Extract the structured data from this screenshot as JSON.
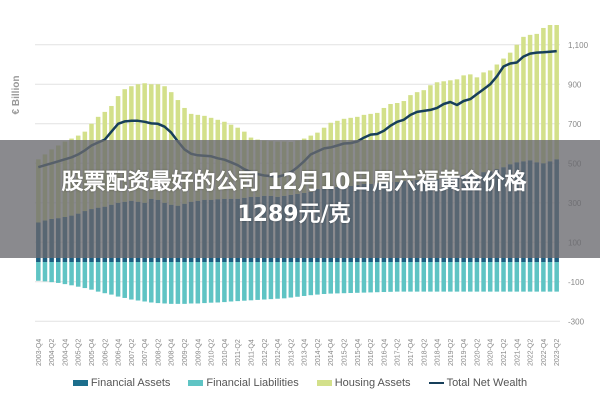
{
  "banner": {
    "title": "股票配资最好的公司 12月10日周六福黄金价格1289元/克"
  },
  "colors": {
    "financial_assets": "#1c5e80",
    "financial_liabilities": "#5fc4c4",
    "housing_assets": "#d3e08a",
    "total_net_wealth": "#173f5a",
    "grid": "#e2e2e2",
    "tick_text": "#888888"
  },
  "chart_data": {
    "type": "bar",
    "stacked": true,
    "ylabel": "€ Billion",
    "ylim": [
      -300,
      1200
    ],
    "yticks": [
      1100,
      900,
      700,
      500,
      300,
      100,
      -100,
      -300
    ],
    "ytick_labels": [
      "1,100",
      "900",
      "700",
      "500",
      "300",
      "100",
      "-100",
      "-300"
    ],
    "y_axis_side": "right",
    "grid": true,
    "legend_position": "bottom",
    "categories": [
      "2003-Q4",
      "2004-Q1",
      "2004-Q2",
      "2004-Q3",
      "2004-Q4",
      "2005-Q1",
      "2005-Q2",
      "2005-Q3",
      "2005-Q4",
      "2006-Q1",
      "2006-Q2",
      "2006-Q3",
      "2006-Q4",
      "2007-Q1",
      "2007-Q2",
      "2007-Q3",
      "2007-Q4",
      "2008-Q1",
      "2008-Q2",
      "2008-Q3",
      "2008-Q4",
      "2009-Q1",
      "2009-Q2",
      "2009-Q3",
      "2009-Q4",
      "2010-Q1",
      "2010-Q2",
      "2010-Q3",
      "2010-Q4",
      "2011-Q1",
      "2011-Q2",
      "2011-Q3",
      "2011-Q4",
      "2012-Q1",
      "2012-Q2",
      "2012-Q3",
      "2012-Q4",
      "2013-Q1",
      "2013-Q2",
      "2013-Q3",
      "2013-Q4",
      "2014-Q1",
      "2014-Q2",
      "2014-Q3",
      "2014-Q4",
      "2015-Q1",
      "2015-Q2",
      "2015-Q3",
      "2015-Q4",
      "2016-Q1",
      "2016-Q2",
      "2016-Q3",
      "2016-Q4",
      "2017-Q1",
      "2017-Q2",
      "2017-Q3",
      "2017-Q4",
      "2018-Q1",
      "2018-Q2",
      "2018-Q3",
      "2018-Q4",
      "2019-Q1",
      "2019-Q2",
      "2019-Q3",
      "2019-Q4",
      "2020-Q1",
      "2020-Q2",
      "2020-Q3",
      "2020-Q4",
      "2021-Q1",
      "2021-Q2",
      "2021-Q3",
      "2021-Q4",
      "2022-Q1",
      "2022-Q2",
      "2022-Q3",
      "2022-Q4",
      "2023-Q1",
      "2023-Q2"
    ],
    "series": [
      {
        "name": "Financial Assets",
        "kind": "bar",
        "values": [
          200,
          210,
          218,
          222,
          228,
          235,
          245,
          258,
          268,
          275,
          280,
          290,
          300,
          305,
          310,
          305,
          300,
          320,
          315,
          300,
          290,
          285,
          295,
          305,
          310,
          315,
          315,
          318,
          320,
          320,
          320,
          325,
          330,
          330,
          335,
          335,
          330,
          335,
          340,
          345,
          350,
          355,
          370,
          375,
          375,
          380,
          385,
          385,
          390,
          395,
          395,
          400,
          400,
          405,
          405,
          410,
          410,
          415,
          415,
          420,
          420,
          425,
          430,
          430,
          440,
          445,
          440,
          455,
          460,
          470,
          480,
          495,
          505,
          510,
          515,
          505,
          500,
          510,
          520
        ]
      },
      {
        "name": "Financial Liabilities",
        "kind": "bar",
        "values": [
          -95,
          -98,
          -102,
          -106,
          -112,
          -118,
          -125,
          -132,
          -140,
          -150,
          -158,
          -165,
          -175,
          -182,
          -190,
          -195,
          -200,
          -205,
          -208,
          -210,
          -212,
          -212,
          -212,
          -210,
          -210,
          -208,
          -206,
          -205,
          -203,
          -200,
          -198,
          -196,
          -194,
          -192,
          -190,
          -188,
          -186,
          -184,
          -180,
          -176,
          -172,
          -168,
          -165,
          -162,
          -160,
          -159,
          -158,
          -157,
          -156,
          -155,
          -154,
          -153,
          -152,
          -151,
          -150,
          -150,
          -150,
          -150,
          -150,
          -150,
          -150,
          -150,
          -150,
          -150,
          -150,
          -150,
          -150,
          -150,
          -150,
          -150,
          -150,
          -150,
          -150,
          -150,
          -150,
          -150,
          -150,
          -150,
          -150
        ]
      },
      {
        "name": "Housing Assets",
        "kind": "bar",
        "values": [
          320,
          335,
          352,
          368,
          382,
          390,
          395,
          402,
          432,
          460,
          480,
          500,
          540,
          570,
          580,
          595,
          605,
          580,
          585,
          590,
          570,
          535,
          485,
          445,
          435,
          425,
          415,
          402,
          390,
          375,
          360,
          335,
          300,
          290,
          280,
          277,
          280,
          275,
          268,
          270,
          275,
          285,
          285,
          305,
          330,
          335,
          340,
          345,
          345,
          350,
          355,
          355,
          380,
          395,
          400,
          405,
          435,
          445,
          455,
          475,
          490,
          490,
          490,
          495,
          505,
          505,
          495,
          505,
          510,
          530,
          550,
          565,
          595,
          630,
          635,
          650,
          685,
          690,
          680
        ]
      },
      {
        "name": "Total Net Wealth",
        "kind": "line",
        "values": [
          480,
          490,
          500,
          510,
          520,
          530,
          545,
          565,
          590,
          605,
          620,
          660,
          700,
          712,
          715,
          715,
          710,
          702,
          700,
          685,
          655,
          610,
          570,
          548,
          540,
          538,
          535,
          525,
          518,
          505,
          490,
          470,
          455,
          445,
          438,
          435,
          432,
          440,
          455,
          480,
          510,
          545,
          560,
          575,
          580,
          590,
          600,
          602,
          610,
          630,
          645,
          648,
          665,
          690,
          710,
          720,
          745,
          760,
          765,
          770,
          780,
          800,
          810,
          795,
          815,
          825,
          850,
          875,
          900,
          940,
          990,
          1005,
          1010,
          1040,
          1055,
          1060,
          1062,
          1065,
          1068
        ]
      }
    ]
  }
}
